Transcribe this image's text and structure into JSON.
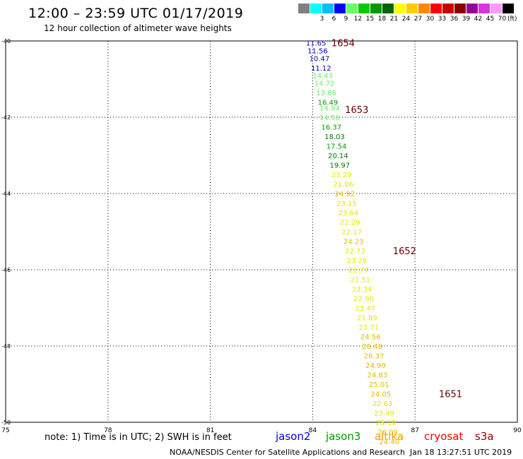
{
  "header": {
    "title": "12:00 – 23:59 UTC 01/17/2019",
    "subtitle": "12 hour collection of altimeter wave heights"
  },
  "legend_scale": {
    "unit": "(ft)",
    "bins": [
      {
        "label": "",
        "color": "#808080"
      },
      {
        "label": "3",
        "color": "#00ffff"
      },
      {
        "label": "6",
        "color": "#00c0ff"
      },
      {
        "label": "9",
        "color": "#0000ff"
      },
      {
        "label": "12",
        "color": "#66ff66"
      },
      {
        "label": "15",
        "color": "#00cc00"
      },
      {
        "label": "18",
        "color": "#009900"
      },
      {
        "label": "21",
        "color": "#006600"
      },
      {
        "label": "24",
        "color": "#ffff00"
      },
      {
        "label": "27",
        "color": "#ffcc00"
      },
      {
        "label": "30",
        "color": "#ff8800"
      },
      {
        "label": "33",
        "color": "#ff0000"
      },
      {
        "label": "36",
        "color": "#cc0000"
      },
      {
        "label": "39",
        "color": "#880000"
      },
      {
        "label": "42",
        "color": "#990099"
      },
      {
        "label": "45",
        "color": "#dd33dd"
      },
      {
        "label": "70",
        "color": "#ff99ff"
      },
      {
        "label": "",
        "color": "#000000"
      }
    ]
  },
  "chart_data": {
    "type": "scatter",
    "title": "12:00 – 23:59 UTC 01/17/2019",
    "subtitle": "12 hour collection of altimeter wave heights",
    "xlim": [
      75,
      90
    ],
    "ylim": [
      -50,
      -40
    ],
    "x_ticks": [
      "75",
      "78",
      "81",
      "84",
      "87",
      "90"
    ],
    "y_ticks": [
      "-40",
      "-42",
      "-44",
      "-46",
      "-48",
      "-50"
    ],
    "x_tick_values": [
      75,
      78,
      81,
      84,
      87,
      90
    ],
    "y_tick_values": [
      -40,
      -42,
      -44,
      -46,
      -48,
      -50
    ],
    "grid": true,
    "points": [
      {
        "x": 83.8,
        "y": -40.05,
        "v": "11.65",
        "color": "#0000aa"
      },
      {
        "x": 83.85,
        "y": -40.25,
        "v": "11.56",
        "color": "#0000aa"
      },
      {
        "x": 83.9,
        "y": -40.45,
        "v": "10.47",
        "color": "#0000aa"
      },
      {
        "x": 83.95,
        "y": -40.7,
        "v": "11.12",
        "color": "#0000aa"
      },
      {
        "x": 84.0,
        "y": -40.9,
        "v": "14.43",
        "color": "#66ee66"
      },
      {
        "x": 84.05,
        "y": -41.1,
        "v": "14.72",
        "color": "#66ee66"
      },
      {
        "x": 84.1,
        "y": -41.35,
        "v": "13.86",
        "color": "#66ee66"
      },
      {
        "x": 84.15,
        "y": -41.6,
        "v": "16.49",
        "color": "#009900"
      },
      {
        "x": 84.2,
        "y": -41.75,
        "v": "14.94",
        "color": "#66ee66"
      },
      {
        "x": 84.2,
        "y": -42.0,
        "v": "14.56",
        "color": "#66ee66"
      },
      {
        "x": 84.25,
        "y": -42.25,
        "v": "16.37",
        "color": "#009900"
      },
      {
        "x": 84.35,
        "y": -42.5,
        "v": "18.03",
        "color": "#007700"
      },
      {
        "x": 84.4,
        "y": -42.75,
        "v": "17.54",
        "color": "#009900"
      },
      {
        "x": 84.45,
        "y": -43.0,
        "v": "20.14",
        "color": "#007700"
      },
      {
        "x": 84.5,
        "y": -43.25,
        "v": "19.97",
        "color": "#007700"
      },
      {
        "x": 84.55,
        "y": -43.5,
        "v": "23.29",
        "color": "#e6e600"
      },
      {
        "x": 84.6,
        "y": -43.75,
        "v": "21.06",
        "color": "#e6e600"
      },
      {
        "x": 84.65,
        "y": -44.0,
        "v": "24.92",
        "color": "#e6b800"
      },
      {
        "x": 84.7,
        "y": -44.25,
        "v": "23.15",
        "color": "#e6e600"
      },
      {
        "x": 84.75,
        "y": -44.5,
        "v": "23.64",
        "color": "#e6e600"
      },
      {
        "x": 84.8,
        "y": -44.75,
        "v": "22.29",
        "color": "#e6e600"
      },
      {
        "x": 84.85,
        "y": -45.0,
        "v": "22.17",
        "color": "#e6e600"
      },
      {
        "x": 84.9,
        "y": -45.25,
        "v": "24.23",
        "color": "#e6b800"
      },
      {
        "x": 84.95,
        "y": -45.5,
        "v": "22.73",
        "color": "#e6e600"
      },
      {
        "x": 85.0,
        "y": -45.75,
        "v": "23.26",
        "color": "#e6e600"
      },
      {
        "x": 85.05,
        "y": -46.0,
        "v": "21.77",
        "color": "#e6e600"
      },
      {
        "x": 85.1,
        "y": -46.25,
        "v": "21.51",
        "color": "#e6e600"
      },
      {
        "x": 85.15,
        "y": -46.5,
        "v": "23.34",
        "color": "#e6e600"
      },
      {
        "x": 85.2,
        "y": -46.75,
        "v": "22.90",
        "color": "#e6e600"
      },
      {
        "x": 85.25,
        "y": -47.0,
        "v": "23.47",
        "color": "#e6e600"
      },
      {
        "x": 85.3,
        "y": -47.25,
        "v": "21.89",
        "color": "#e6e600"
      },
      {
        "x": 85.35,
        "y": -47.5,
        "v": "23.71",
        "color": "#e6e600"
      },
      {
        "x": 85.4,
        "y": -47.75,
        "v": "24.56",
        "color": "#e6b800"
      },
      {
        "x": 85.45,
        "y": -48.0,
        "v": "26.48",
        "color": "#e6b800"
      },
      {
        "x": 85.5,
        "y": -48.25,
        "v": "26.37",
        "color": "#e6b800"
      },
      {
        "x": 85.55,
        "y": -48.5,
        "v": "24.99",
        "color": "#e6b800"
      },
      {
        "x": 85.6,
        "y": -48.75,
        "v": "24.83",
        "color": "#e6b800"
      },
      {
        "x": 85.65,
        "y": -49.0,
        "v": "25.01",
        "color": "#e6b800"
      },
      {
        "x": 85.7,
        "y": -49.25,
        "v": "24.05",
        "color": "#e6b800"
      },
      {
        "x": 85.75,
        "y": -49.5,
        "v": "22.63",
        "color": "#e6e600"
      },
      {
        "x": 85.8,
        "y": -49.75,
        "v": "23.49",
        "color": "#e6e600"
      },
      {
        "x": 85.85,
        "y": -50.0,
        "v": "23.19",
        "color": "#e6e600"
      },
      {
        "x": 85.9,
        "y": -50.25,
        "v": "26.09",
        "color": "#e6b800"
      },
      {
        "x": 85.95,
        "y": -50.5,
        "v": "24.40",
        "color": "#e6b800"
      }
    ],
    "time_labels": [
      {
        "x": 84.55,
        "y": -40.05,
        "label": "1654"
      },
      {
        "x": 84.95,
        "y": -41.8,
        "label": "1653"
      },
      {
        "x": 86.35,
        "y": -45.5,
        "label": "1652"
      },
      {
        "x": 87.7,
        "y": -49.25,
        "label": "1651"
      }
    ],
    "time_label_color": "#660000"
  },
  "footer": {
    "note": "note: 1) Time is in UTC; 2) SWH is in feet",
    "satellites": [
      {
        "name": "jason2",
        "color": "#0000cc"
      },
      {
        "name": "jason3",
        "color": "#009900"
      },
      {
        "name": "altika",
        "color": "#ff9900"
      },
      {
        "name": "cryosat",
        "color": "#ff0000"
      },
      {
        "name": "s3a",
        "color": "#880000"
      }
    ],
    "credit": "NOAA/NESDIS Center for Satellite Applications and Research",
    "timestamp": "Jan 18 13:27:51 UTC 2019"
  }
}
